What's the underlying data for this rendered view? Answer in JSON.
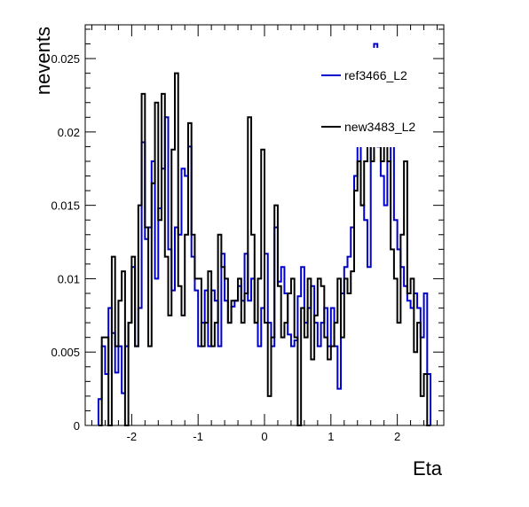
{
  "chart_data": {
    "type": "histogram",
    "title": "",
    "xlabel": "Eta",
    "ylabel": "nevents",
    "xlim": [
      -2.7,
      2.7
    ],
    "ylim": [
      0,
      0.0273
    ],
    "grid": false,
    "legend_placement": "top-right",
    "x_ticks": [
      -2,
      -1,
      0,
      1,
      2
    ],
    "x_tick_labels": [
      "-2",
      "-1",
      "0",
      "1",
      "2"
    ],
    "y_ticks": [
      0,
      0.005,
      0.01,
      0.015,
      0.02,
      0.025
    ],
    "y_tick_labels": [
      "0",
      "0.005",
      "0.01",
      "0.015",
      "0.02",
      "0.025"
    ],
    "bin_edges_range": [
      -2.5,
      2.5
    ],
    "bin_count": 100,
    "series": [
      {
        "name": "ref3466_L2",
        "color": "#0000cc",
        "values": [
          0.0018,
          0.0054,
          0.0035,
          0.008,
          0.0063,
          0.0036,
          0.0054,
          0.0022,
          0.0054,
          0.007,
          0.0108,
          0.0054,
          0.008,
          0.0193,
          0.0127,
          0.0135,
          0.018,
          0.01,
          0.0148,
          0.0175,
          0.021,
          0.012,
          0.0092,
          0.0135,
          0.013,
          0.0175,
          0.017,
          0.019,
          0.0115,
          0.0092,
          0.0054,
          0.007,
          0.0092,
          0.0054,
          0.0092,
          0.0085,
          0.0054,
          0.0117,
          0.0085,
          0.007,
          0.0081,
          0.0085,
          0.0095,
          0.0085,
          0.0117,
          0.0085,
          0.01,
          0.007,
          0.0054,
          0.008,
          0.0117,
          0.007,
          0.0054,
          0.0135,
          0.0098,
          0.0108,
          0.009,
          0.0062,
          0.0054,
          0.0058,
          0.0088,
          0.0108,
          0.007,
          0.008,
          0.0095,
          0.007,
          0.0054,
          0.007,
          0.008,
          0.0054,
          0.008,
          0.0054,
          0.0025,
          0.009,
          0.0108,
          0.0115,
          0.0135,
          0.017,
          0.02,
          0.015,
          0.014,
          0.0108,
          0.022,
          0.026,
          0.019,
          0.017,
          0.015,
          0.018,
          0.022,
          0.014,
          0.012,
          0.0108,
          0.0095,
          0.0085,
          0.008,
          0.009,
          0.008,
          0.006,
          0.009,
          0.0035
        ]
      },
      {
        "name": "new3483_L2",
        "color": "#000000",
        "values": [
          0.0,
          0.006,
          0.006,
          0.0,
          0.0115,
          0.0054,
          0.0085,
          0.0105,
          0.0,
          0.007,
          0.0115,
          0.0054,
          0.015,
          0.0226,
          0.0135,
          0.0054,
          0.0165,
          0.022,
          0.014,
          0.0226,
          0.0115,
          0.0075,
          0.0188,
          0.024,
          0.0095,
          0.0075,
          0.013,
          0.0206,
          0.013,
          0.01,
          0.01,
          0.0054,
          0.007,
          0.0105,
          0.0054,
          0.007,
          0.013,
          0.0108,
          0.01,
          0.007,
          0.0085,
          0.0085,
          0.01,
          0.007,
          0.009,
          0.021,
          0.013,
          0.007,
          0.01,
          0.0188,
          0.007,
          0.002,
          0.006,
          0.015,
          0.0095,
          0.006,
          0.007,
          0.009,
          0.01,
          0.006,
          0.0,
          0.008,
          0.006,
          0.01,
          0.0045,
          0.0075,
          0.01,
          0.0095,
          0.006,
          0.0045,
          0.0054,
          0.007,
          0.01,
          0.006,
          0.01,
          0.009,
          0.0105,
          0.016,
          0.018,
          0.015,
          0.018,
          0.02,
          0.018,
          0.021,
          0.02,
          0.018,
          0.02,
          0.018,
          0.012,
          0.01,
          0.007,
          0.013,
          0.018,
          0.009,
          0.01,
          0.005,
          0.007,
          0.002,
          0.0035,
          0.0
        ]
      }
    ]
  }
}
